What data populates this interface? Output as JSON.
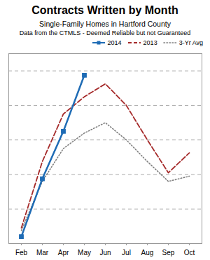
{
  "chart_data": {
    "type": "line",
    "title": "Contracts Written by Month",
    "subtitle": [
      "Single-Family Homes in Hartford County",
      "Data from the CTMLS - Deemed Reliable but not Guaranteed"
    ],
    "categories": [
      "Feb",
      "Mar",
      "Apr",
      "May",
      "Jun",
      "Jul",
      "Aug",
      "Sep",
      "Oct"
    ],
    "series": [
      {
        "name": "2014",
        "color": "#1f6cb5",
        "line_style": "solid",
        "marker": "square",
        "values": [
          8,
          75,
          130,
          195,
          null,
          null,
          null,
          null,
          null
        ]
      },
      {
        "name": "2013",
        "color": "#a52a2a",
        "line_style": "dashed",
        "values": [
          18,
          95,
          150,
          170,
          185,
          160,
          120,
          82,
          105
        ]
      },
      {
        "name": "3-Yr Avg",
        "color": "#808080",
        "line_style": "dotted",
        "values": [
          15,
          72,
          110,
          128,
          140,
          120,
          95,
          72,
          78
        ]
      }
    ],
    "ylim": [
      0,
      220
    ],
    "yticks": [
      0,
      40,
      80,
      120,
      160,
      200
    ],
    "grid": true,
    "legend": "upper right",
    "tick_labels": "x"
  }
}
